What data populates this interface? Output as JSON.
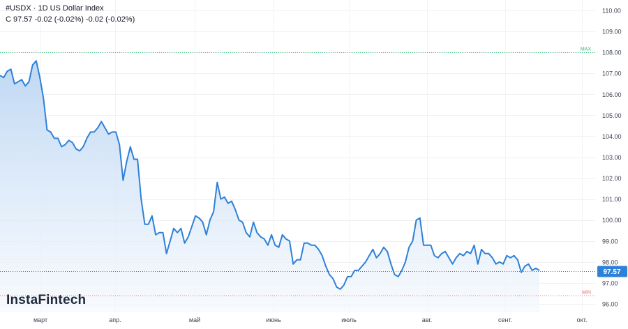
{
  "header": {
    "symbol": "#USDX",
    "separator": "·",
    "interval": "1D",
    "name": "US Dollar Index",
    "ohlc_line": "C 97.57 -0.02 (-0.02%) -0.02 (-0.02%)"
  },
  "logo": {
    "text": "InstaFintech"
  },
  "markers": {
    "max_label": "MAX",
    "max_value": 108.0,
    "min_label": "MIN",
    "min_value": 96.4
  },
  "last_price": {
    "label": "97.57",
    "value": 97.57
  },
  "colors": {
    "line": "#2f80d8",
    "area_top": "#bcd6f3",
    "area_bottom": "#f4f8fd",
    "last_badge": "#2f80d8",
    "max_line": "#2eb872",
    "min_line": "#f06a6a"
  },
  "chart_data": {
    "type": "area",
    "title": "",
    "xlabel": "",
    "ylabel": "",
    "ylim": [
      95.6,
      110.5
    ],
    "grid": true,
    "y_ticks": [
      "96.00",
      "97.00",
      "98.00",
      "99.00",
      "100.00",
      "101.00",
      "102.00",
      "103.00",
      "104.00",
      "105.00",
      "106.00",
      "107.00",
      "108.00",
      "109.00",
      "110.00"
    ],
    "x_ticks": [
      "март",
      "апр.",
      "май",
      "июнь",
      "июль",
      "авг.",
      "сент.",
      "окт."
    ],
    "series": [
      {
        "values": [
          106.9,
          106.8,
          107.1,
          107.2,
          106.5,
          106.6,
          106.7,
          106.4,
          106.6,
          107.4,
          107.6,
          106.8,
          105.8,
          104.3,
          104.2,
          103.9,
          103.9,
          103.5,
          103.6,
          103.8,
          103.7,
          103.4,
          103.3,
          103.5,
          103.9,
          104.2,
          104.2,
          104.4,
          104.7,
          104.4,
          104.1,
          104.2,
          104.2,
          103.6,
          101.9,
          102.8,
          103.5,
          102.9,
          102.9,
          101.0,
          99.8,
          99.8,
          100.2,
          99.3,
          99.4,
          99.4,
          98.4,
          99.0,
          99.6,
          99.4,
          99.6,
          98.9,
          99.2,
          99.7,
          100.2,
          100.1,
          99.9,
          99.3,
          100.0,
          100.4,
          101.8,
          101.0,
          101.1,
          100.8,
          100.9,
          100.5,
          100.0,
          99.9,
          99.4,
          99.2,
          99.9,
          99.4,
          99.2,
          99.1,
          98.8,
          99.3,
          98.8,
          98.7,
          99.3,
          99.1,
          99.0,
          97.9,
          98.1,
          98.1,
          98.9,
          98.9,
          98.8,
          98.8,
          98.6,
          98.3,
          97.8,
          97.4,
          97.2,
          96.8,
          96.7,
          96.9,
          97.3,
          97.3,
          97.6,
          97.6,
          97.8,
          98.0,
          98.3,
          98.6,
          98.2,
          98.4,
          98.7,
          98.5,
          97.9,
          97.4,
          97.3,
          97.6,
          98.0,
          98.7,
          99.0,
          100.0,
          100.1,
          98.8,
          98.8,
          98.8,
          98.3,
          98.2,
          98.4,
          98.5,
          98.2,
          97.9,
          98.2,
          98.4,
          98.3,
          98.5,
          98.4,
          98.8,
          97.9,
          98.6,
          98.4,
          98.4,
          98.2,
          97.9,
          98.0,
          97.9,
          98.3,
          98.2,
          98.3,
          98.1,
          97.5,
          97.8,
          97.9,
          97.6,
          97.7,
          97.6
        ]
      }
    ]
  }
}
